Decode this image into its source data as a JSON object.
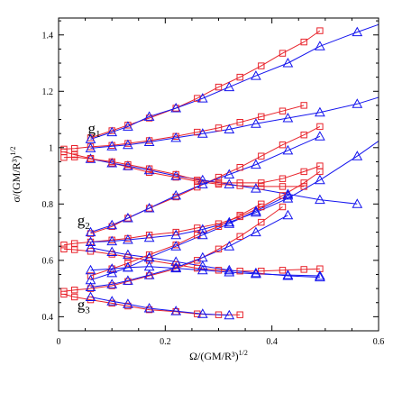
{
  "chart_data": {
    "type": "line",
    "xlabel": "Ω/(GM/R³)^{1/2}",
    "ylabel": "σ/(GM/R³)^{1/2}",
    "xlim": [
      0,
      0.6
    ],
    "ylim": [
      0.35,
      1.46
    ],
    "x_ticks": [
      "0",
      "0.2",
      "0.4",
      "0.6"
    ],
    "y_ticks": [
      "0.4",
      "0.6",
      "0.8",
      "1",
      "1.2",
      "1.4"
    ],
    "annotations": [
      {
        "base": "g",
        "sub": "1",
        "x": 0.055,
        "y": 1.05
      },
      {
        "base": "g",
        "sub": "2",
        "x": 0.035,
        "y": 0.725
      },
      {
        "base": "g",
        "sub": "3",
        "x": 0.035,
        "y": 0.425
      }
    ],
    "colors": {
      "red_squares": "#e8222a",
      "blue_triangles": "#1414ee"
    },
    "series": [
      {
        "marker": "square",
        "color": "#e8222a",
        "x": [
          0.06,
          0.1,
          0.13,
          0.17,
          0.22,
          0.26,
          0.3,
          0.34,
          0.38,
          0.42,
          0.46,
          0.49
        ],
        "y": [
          1.035,
          1.06,
          1.08,
          1.105,
          1.14,
          1.175,
          1.215,
          1.25,
          1.29,
          1.335,
          1.375,
          1.415
        ]
      },
      {
        "marker": "triangle",
        "color": "#1414ee",
        "x": [
          0.06,
          0.1,
          0.13,
          0.17,
          0.22,
          0.27,
          0.32,
          0.37,
          0.43,
          0.49,
          0.56,
          0.62
        ],
        "y": [
          1.03,
          1.055,
          1.075,
          1.11,
          1.14,
          1.175,
          1.215,
          1.255,
          1.3,
          1.36,
          1.41,
          1.45
        ]
      },
      {
        "marker": "square",
        "color": "#e8222a",
        "x": [
          0.01,
          0.03,
          0.06,
          0.1,
          0.13,
          0.17,
          0.22,
          0.26,
          0.3,
          0.34,
          0.38,
          0.42,
          0.46
        ],
        "y": [
          0.995,
          0.997,
          1.003,
          1.008,
          1.015,
          1.025,
          1.04,
          1.055,
          1.07,
          1.09,
          1.11,
          1.13,
          1.15
        ]
      },
      {
        "marker": "triangle",
        "color": "#1414ee",
        "x": [
          0.06,
          0.1,
          0.13,
          0.17,
          0.22,
          0.27,
          0.32,
          0.37,
          0.43,
          0.49,
          0.56,
          0.62
        ],
        "y": [
          0.998,
          1.005,
          1.01,
          1.02,
          1.035,
          1.05,
          1.065,
          1.085,
          1.105,
          1.125,
          1.155,
          1.19
        ]
      },
      {
        "marker": "square",
        "color": "#e8222a",
        "x": [
          0.01,
          0.03,
          0.06,
          0.1,
          0.13,
          0.17,
          0.22,
          0.26,
          0.3,
          0.34,
          0.38,
          0.42,
          0.46
        ],
        "y": [
          0.985,
          0.975,
          0.962,
          0.945,
          0.932,
          0.912,
          0.895,
          0.88,
          0.87,
          0.865,
          0.862,
          0.862,
          0.862
        ]
      },
      {
        "marker": "triangle",
        "color": "#1414ee",
        "x": [
          0.06,
          0.1,
          0.13,
          0.17,
          0.22,
          0.27,
          0.32,
          0.37,
          0.43,
          0.49,
          0.56
        ],
        "y": [
          0.96,
          0.945,
          0.935,
          0.92,
          0.9,
          0.885,
          0.87,
          0.855,
          0.835,
          0.815,
          0.8
        ]
      },
      {
        "marker": "square",
        "color": "#e8222a",
        "x": [
          0.01,
          0.03,
          0.06,
          0.1,
          0.13,
          0.17,
          0.22,
          0.26,
          0.3,
          0.34,
          0.38,
          0.42,
          0.46,
          0.49
        ],
        "y": [
          0.965,
          0.967,
          0.96,
          0.95,
          0.94,
          0.925,
          0.905,
          0.885,
          0.875,
          0.875,
          0.875,
          0.89,
          0.915,
          0.935
        ]
      },
      {
        "marker": "square",
        "color": "#e8222a",
        "x": [
          0.06,
          0.1,
          0.13,
          0.17,
          0.22,
          0.26,
          0.3,
          0.34,
          0.38,
          0.42,
          0.46,
          0.49
        ],
        "y": [
          0.695,
          0.72,
          0.75,
          0.785,
          0.825,
          0.86,
          0.895,
          0.93,
          0.97,
          1.01,
          1.045,
          1.075
        ]
      },
      {
        "marker": "triangle",
        "color": "#1414ee",
        "x": [
          0.06,
          0.1,
          0.13,
          0.17,
          0.22,
          0.27,
          0.32,
          0.37,
          0.43,
          0.49
        ],
        "y": [
          0.7,
          0.725,
          0.75,
          0.785,
          0.83,
          0.87,
          0.905,
          0.94,
          0.99,
          1.04
        ]
      },
      {
        "marker": "square",
        "color": "#e8222a",
        "x": [
          0.01,
          0.03,
          0.06,
          0.1,
          0.13,
          0.17,
          0.22,
          0.26,
          0.3,
          0.34,
          0.38,
          0.42,
          0.46,
          0.49
        ],
        "y": [
          0.655,
          0.66,
          0.665,
          0.672,
          0.678,
          0.69,
          0.7,
          0.715,
          0.73,
          0.755,
          0.79,
          0.83,
          0.875,
          0.915
        ]
      },
      {
        "marker": "triangle",
        "color": "#1414ee",
        "x": [
          0.06,
          0.1,
          0.13,
          0.17,
          0.22,
          0.27,
          0.32,
          0.37,
          0.43,
          0.49,
          0.56,
          0.62
        ],
        "y": [
          0.665,
          0.668,
          0.673,
          0.68,
          0.69,
          0.71,
          0.735,
          0.77,
          0.82,
          0.885,
          0.97,
          1.05
        ]
      },
      {
        "marker": "square",
        "color": "#e8222a",
        "x": [
          0.01,
          0.03,
          0.06,
          0.1,
          0.13,
          0.17,
          0.22,
          0.26,
          0.3,
          0.34,
          0.38,
          0.42,
          0.46,
          0.49
        ],
        "y": [
          0.64,
          0.638,
          0.632,
          0.622,
          0.612,
          0.6,
          0.585,
          0.572,
          0.565,
          0.562,
          0.562,
          0.565,
          0.568,
          0.57
        ]
      },
      {
        "marker": "triangle",
        "color": "#1414ee",
        "x": [
          0.06,
          0.1,
          0.13,
          0.17,
          0.22,
          0.27,
          0.32,
          0.37,
          0.43,
          0.49
        ],
        "y": [
          0.645,
          0.63,
          0.62,
          0.61,
          0.595,
          0.58,
          0.565,
          0.555,
          0.545,
          0.54
        ]
      },
      {
        "marker": "square",
        "color": "#e8222a",
        "x": [
          0.06,
          0.1,
          0.13,
          0.17,
          0.22,
          0.26,
          0.3,
          0.34,
          0.38
        ],
        "y": [
          0.545,
          0.57,
          0.59,
          0.62,
          0.655,
          0.69,
          0.72,
          0.76,
          0.8
        ]
      },
      {
        "marker": "triangle",
        "color": "#1414ee",
        "x": [
          0.06,
          0.1,
          0.13,
          0.17,
          0.22,
          0.27,
          0.32,
          0.37,
          0.43
        ],
        "y": [
          0.53,
          0.555,
          0.575,
          0.61,
          0.65,
          0.69,
          0.73,
          0.775,
          0.83
        ]
      },
      {
        "marker": "square",
        "color": "#e8222a",
        "x": [
          0.01,
          0.03,
          0.06,
          0.1,
          0.13,
          0.17,
          0.22,
          0.26,
          0.3,
          0.34,
          0.38,
          0.42
        ],
        "y": [
          0.49,
          0.495,
          0.5,
          0.51,
          0.525,
          0.545,
          0.57,
          0.6,
          0.64,
          0.685,
          0.735,
          0.79
        ]
      },
      {
        "marker": "triangle",
        "color": "#1414ee",
        "x": [
          0.06,
          0.1,
          0.13,
          0.17,
          0.22,
          0.27,
          0.32,
          0.37,
          0.43
        ],
        "y": [
          0.505,
          0.515,
          0.528,
          0.548,
          0.575,
          0.61,
          0.65,
          0.7,
          0.76
        ]
      },
      {
        "marker": "triangle",
        "color": "#1414ee",
        "x": [
          0.06,
          0.1,
          0.13,
          0.17,
          0.22,
          0.27,
          0.32,
          0.37,
          0.43,
          0.49
        ],
        "y": [
          0.565,
          0.57,
          0.575,
          0.578,
          0.572,
          0.565,
          0.558,
          0.552,
          0.548,
          0.545
        ]
      },
      {
        "marker": "square",
        "color": "#e8222a",
        "x": [
          0.01,
          0.03,
          0.06,
          0.1,
          0.13,
          0.17,
          0.22,
          0.26,
          0.3,
          0.34
        ],
        "y": [
          0.48,
          0.47,
          0.46,
          0.448,
          0.438,
          0.425,
          0.418,
          0.41,
          0.407,
          0.407
        ]
      },
      {
        "marker": "triangle",
        "color": "#1414ee",
        "x": [
          0.06,
          0.1,
          0.13,
          0.17,
          0.22,
          0.27,
          0.32
        ],
        "y": [
          0.47,
          0.455,
          0.445,
          0.43,
          0.42,
          0.41,
          0.405
        ]
      }
    ]
  }
}
